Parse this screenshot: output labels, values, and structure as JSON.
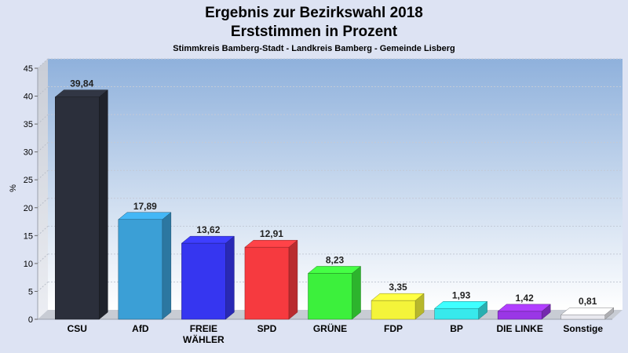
{
  "chart_data": {
    "type": "bar",
    "title": "Ergebnis zur Bezirkswahl 2018",
    "subtitle": "Erststimmen in Prozent",
    "caption": "Stimmkreis Bamberg-Stadt - Landkreis Bamberg - Gemeinde Lisberg",
    "ylabel": "%",
    "ylim": [
      0,
      45
    ],
    "yticks": [
      "0",
      "5",
      "10",
      "15",
      "20",
      "25",
      "30",
      "35",
      "40",
      "45"
    ],
    "categories": [
      [
        "CSU"
      ],
      [
        "AfD"
      ],
      [
        "FREIE",
        "WÄHLER"
      ],
      [
        "SPD"
      ],
      [
        "GRÜNE"
      ],
      [
        "FDP"
      ],
      [
        "BP"
      ],
      [
        "DIE LINKE"
      ],
      [
        "Sonstige"
      ]
    ],
    "values": [
      39.84,
      17.89,
      13.62,
      12.91,
      8.23,
      3.35,
      1.93,
      1.42,
      0.81
    ],
    "value_labels": [
      "39,84",
      "17,89",
      "13,62",
      "12,91",
      "8,23",
      "3,35",
      "1,93",
      "1,42",
      "0,81"
    ],
    "colors": [
      "#2b2f3b",
      "#3b9fd6",
      "#3636f0",
      "#f63a3f",
      "#3cf03c",
      "#f4f43a",
      "#37e9ec",
      "#9a36e6",
      "#e9e9ef"
    ],
    "background_gradient": [
      "#8fb1dc",
      "#ffffff"
    ],
    "grid": true,
    "legend": "none"
  }
}
